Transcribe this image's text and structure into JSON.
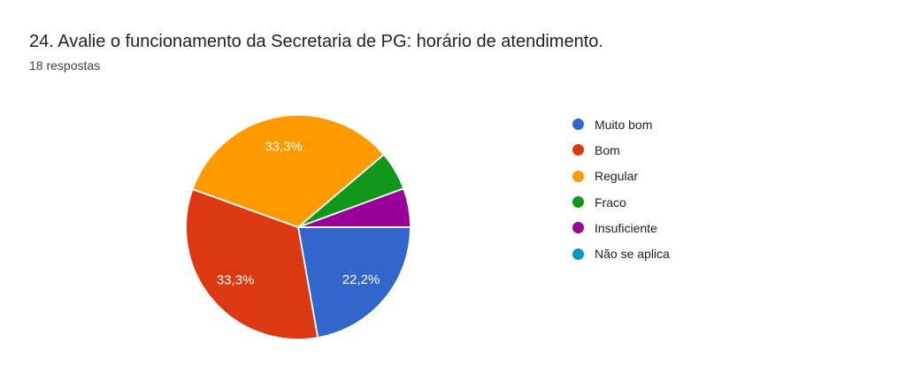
{
  "page": {
    "background": "#ffffff",
    "title_color": "#212121",
    "subtitle_color": "#424242",
    "legend_text_color": "#212121",
    "slice_label_color": "#ffffff",
    "slice_border_color": "#ffffff"
  },
  "chart_data": {
    "type": "pie",
    "title": "24. Avalie o funcionamento da Secretaria de PG: horário de atendimento.",
    "subtitle": "18 respostas",
    "legend_position": "right",
    "start_angle_deg_clockwise_from_east": 0,
    "direction": "clockwise",
    "slices": [
      {
        "label": "Muito bom",
        "percent": 22.2,
        "display": "22,2%",
        "color": "#3366CC",
        "show_label": true
      },
      {
        "label": "Bom",
        "percent": 33.3,
        "display": "33,3%",
        "color": "#DC3912",
        "show_label": true
      },
      {
        "label": "Regular",
        "percent": 33.3,
        "display": "33,3%",
        "color": "#FF9900",
        "show_label": true
      },
      {
        "label": "Fraco",
        "percent": 5.6,
        "display": "",
        "color": "#109618",
        "show_label": false
      },
      {
        "label": "Insuficiente",
        "percent": 5.6,
        "display": "",
        "color": "#990099",
        "show_label": false
      },
      {
        "label": "Não se aplica",
        "percent": 0,
        "display": "",
        "color": "#0099C6",
        "show_label": false
      }
    ]
  }
}
